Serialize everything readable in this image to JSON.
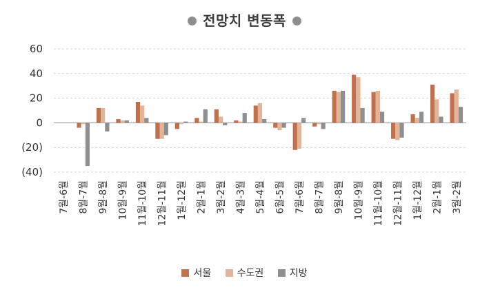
{
  "chart_data": {
    "type": "bar",
    "title": "전망치 변동폭",
    "categories": [
      "7월-6월",
      "8월-7월",
      "9월-8월",
      "10월-9월",
      "11월-10월",
      "12월-11월",
      "1월-12월",
      "2월-1월",
      "3월-2월",
      "4월-3월",
      "5월-4월",
      "6월-5월",
      "7월-6월",
      "8월-7월",
      "9월-8월",
      "10월-9월",
      "11월-10월",
      "12월-11월",
      "1월-12월",
      "2월-1월",
      "3월-2월"
    ],
    "y_ticks": [
      "60",
      "40",
      "20",
      "0",
      "(20)",
      "(40)"
    ],
    "ylim": [
      -40,
      60
    ],
    "grid": true,
    "legend_position": "bottom",
    "series": [
      {
        "name": "서울",
        "color": "#c0704a",
        "values": [
          0,
          -4,
          12,
          3,
          17,
          -13,
          -5,
          4,
          11,
          2,
          14,
          -4,
          -22,
          -3,
          26,
          39,
          25,
          -13,
          7,
          31,
          24
        ]
      },
      {
        "name": "수도권",
        "color": "#e2b49a",
        "values": [
          0,
          -1,
          12,
          2,
          14,
          -13,
          -1,
          1,
          5,
          1,
          16,
          -6,
          -21,
          -1,
          25,
          37,
          26,
          -14,
          4,
          19,
          27
        ]
      },
      {
        "name": "지방",
        "color": "#8f8f8f",
        "values": [
          0,
          -35,
          -7,
          2,
          4,
          -10,
          1,
          11,
          -2,
          8,
          3,
          -4,
          4,
          -5,
          26,
          12,
          9,
          -12,
          9,
          5,
          13
        ]
      }
    ]
  }
}
